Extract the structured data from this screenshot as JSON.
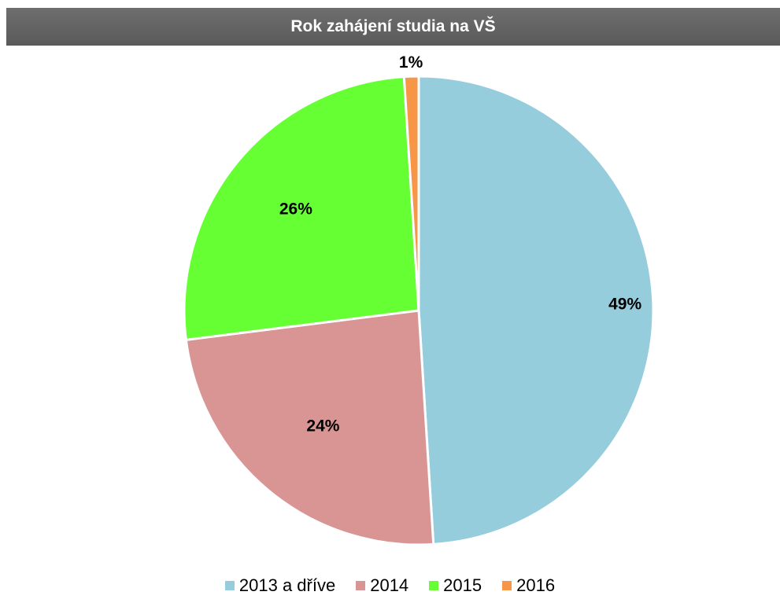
{
  "chart_data": {
    "type": "pie",
    "title": "Rok zahájení studia na VŠ",
    "legend_position": "bottom",
    "slices": [
      {
        "name": "2013 a dříve",
        "value": 49,
        "label": "49%",
        "color": "#96cddc"
      },
      {
        "name": "2014",
        "value": 24,
        "label": "24%",
        "color": "#d99594"
      },
      {
        "name": "2015",
        "value": 26,
        "label": "26%",
        "color": "#66ff33"
      },
      {
        "name": "2016",
        "value": 1,
        "label": "1%",
        "color": "#f79646"
      }
    ]
  }
}
